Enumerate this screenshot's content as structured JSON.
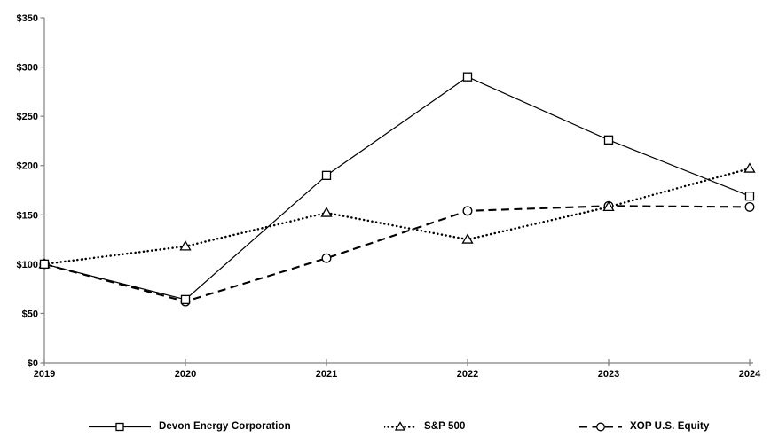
{
  "chart_data": {
    "type": "line",
    "title": "",
    "x_labels": [
      "2019",
      "2020",
      "2021",
      "2022",
      "2023",
      "2024"
    ],
    "series": [
      {
        "name": "Devon Energy Corporation",
        "marker": "square",
        "line_style": "solid",
        "color": "#000000",
        "values": [
          100,
          64,
          190,
          290,
          226,
          169
        ]
      },
      {
        "name": "S&P 500",
        "marker": "triangle",
        "line_style": "dotted",
        "color": "#000000",
        "values": [
          100,
          118,
          152,
          125,
          158,
          197
        ]
      },
      {
        "name": "XOP U.S. Equity",
        "marker": "circle",
        "line_style": "dashed",
        "color": "#000000",
        "values": [
          100,
          62,
          106,
          154,
          159,
          158
        ]
      }
    ],
    "ylim": [
      0,
      350
    ],
    "ytick_step": 50,
    "ytick_labels": [
      "$0",
      "$50",
      "$100",
      "$150",
      "$200",
      "$250",
      "$300",
      "$350"
    ],
    "grid": false,
    "legend_position": "bottom",
    "axis_color": "#808080",
    "text_color": "#000000",
    "background_color": "#ffffff"
  }
}
